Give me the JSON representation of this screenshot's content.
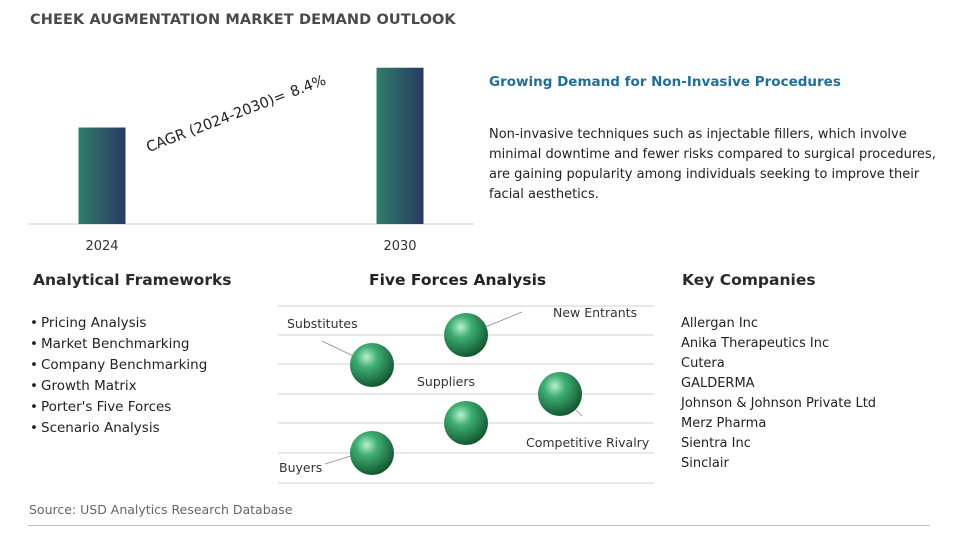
{
  "header": {
    "title": "CHEEK AUGMENTATION MARKET DEMAND OUTLOOK"
  },
  "chart_data": {
    "type": "bar",
    "categories": [
      "2024",
      "2030"
    ],
    "values": [
      1,
      1.62
    ],
    "ylim": [
      0,
      1.7
    ],
    "grid": false,
    "annotation": {
      "label": "CAGR (2024-2030)=",
      "value": "8.4%"
    },
    "colors": {
      "bar_top": "#2a3a63",
      "bar_bottom": "#2f7d6a",
      "axis": "#cccccc"
    }
  },
  "highlight": {
    "headline": "Growing Demand for Non-Invasive Procedures",
    "body": "Non-invasive techniques such as injectable fillers, which involve minimal downtime and fewer risks compared to surgical procedures, are gaining popularity among individuals seeking to improve their facial aesthetics."
  },
  "frameworks": {
    "title": "Analytical Frameworks",
    "items": [
      "Pricing Analysis",
      "Market Benchmarking",
      "Company Benchmarking",
      "Growth Matrix",
      "Porter's Five Forces",
      "Scenario Analysis"
    ]
  },
  "five_forces": {
    "title": "Five Forces Analysis",
    "forces": [
      "Substitutes",
      "New Entrants",
      "Suppliers",
      "Competitive Rivalry",
      "Buyers"
    ],
    "sphere_color": "#2e8b57"
  },
  "companies": {
    "title": "Key Companies",
    "items": [
      "Allergan Inc",
      "Anika Therapeutics Inc",
      "Cutera",
      "GALDERMA",
      "Johnson & Johnson Private Ltd",
      "Merz Pharma",
      "Sientra Inc",
      "Sinclair"
    ]
  },
  "footer": {
    "source": "Source: USD Analytics Research Database"
  }
}
